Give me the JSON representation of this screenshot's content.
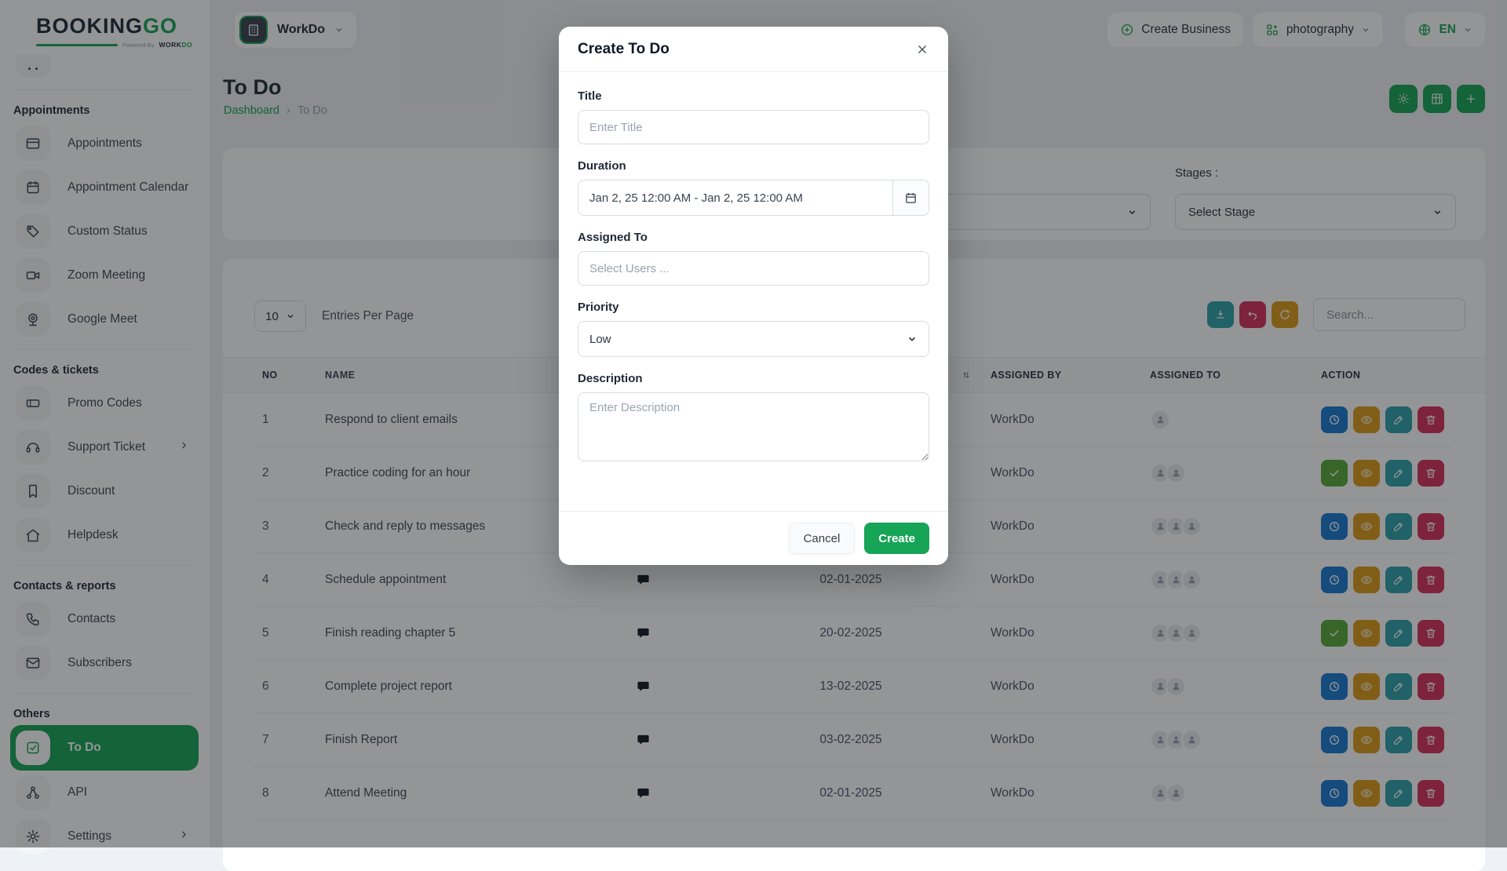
{
  "logo": {
    "brand_primary": "BOOKING",
    "brand_accent": "GO",
    "powered_prefix": "Powered By",
    "powered_brand_primary": "WORK",
    "powered_brand_accent": "DO"
  },
  "header": {
    "workspace_label": "WorkDo",
    "create_business_label": "Create Business",
    "business_label": "photography",
    "language_label": "EN"
  },
  "sidebar": {
    "sections": [
      {
        "title": "Appointments",
        "items": [
          {
            "icon": "card-icon",
            "label": "Appointments"
          },
          {
            "icon": "calendar-icon",
            "label": "Appointment Calendar"
          },
          {
            "icon": "tag-icon",
            "label": "Custom Status"
          },
          {
            "icon": "video-icon",
            "label": "Zoom Meeting"
          },
          {
            "icon": "webcam-icon",
            "label": "Google Meet"
          }
        ]
      },
      {
        "title": "Codes & tickets",
        "items": [
          {
            "icon": "ticket-icon",
            "label": "Promo Codes"
          },
          {
            "icon": "headset-icon",
            "label": "Support Ticket",
            "chevron": true
          },
          {
            "icon": "bookmark-icon",
            "label": "Discount"
          },
          {
            "icon": "home-icon",
            "label": "Helpdesk"
          }
        ]
      },
      {
        "title": "Contacts & reports",
        "items": [
          {
            "icon": "phone-icon",
            "label": "Contacts"
          },
          {
            "icon": "mail-icon",
            "label": "Subscribers"
          }
        ]
      },
      {
        "title": "Others",
        "items": [
          {
            "icon": "check-square-icon",
            "label": "To Do",
            "active": true
          },
          {
            "icon": "share-nodes-icon",
            "label": "API"
          },
          {
            "icon": "gear-icon",
            "label": "Settings",
            "chevron": true
          }
        ]
      }
    ]
  },
  "page": {
    "title": "To Do",
    "breadcrumb_home": "Dashboard",
    "breadcrumb_current": "To Do"
  },
  "filters": {
    "stages_label": "Stages :",
    "stage_value": "Select Stage"
  },
  "toolbar": {
    "entries_value": "10",
    "entries_label": "Entries Per Page",
    "search_placeholder": "Search..."
  },
  "table": {
    "headers": [
      {
        "label": "NO"
      },
      {
        "label": "NAME"
      },
      {
        "label": ""
      },
      {
        "label": "",
        "sort": true
      },
      {
        "label": "ASSIGNED BY"
      },
      {
        "label": "ASSIGNED TO"
      },
      {
        "label": "ACTION"
      }
    ],
    "rows": [
      {
        "no": "1",
        "name": "Respond to client emails",
        "date": "",
        "assigned_by": "WorkDo",
        "assignees": 1,
        "first_action": "clock"
      },
      {
        "no": "2",
        "name": "Practice coding for an hour",
        "date": "",
        "assigned_by": "WorkDo",
        "assignees": 2,
        "first_action": "check"
      },
      {
        "no": "3",
        "name": "Check and reply to messages",
        "date": "",
        "assigned_by": "WorkDo",
        "assignees": 3,
        "first_action": "clock"
      },
      {
        "no": "4",
        "name": "Schedule appointment",
        "date": "02-01-2025",
        "assigned_by": "WorkDo",
        "assignees": 3,
        "first_action": "clock"
      },
      {
        "no": "5",
        "name": "Finish reading chapter 5",
        "date": "20-02-2025",
        "assigned_by": "WorkDo",
        "assignees": 3,
        "first_action": "check"
      },
      {
        "no": "6",
        "name": "Complete project report",
        "date": "13-02-2025",
        "assigned_by": "WorkDo",
        "assignees": 2,
        "first_action": "clock"
      },
      {
        "no": "7",
        "name": "Finish Report",
        "date": "03-02-2025",
        "assigned_by": "WorkDo",
        "assignees": 3,
        "first_action": "clock"
      },
      {
        "no": "8",
        "name": "Attend Meeting",
        "date": "02-01-2025",
        "assigned_by": "WorkDo",
        "assignees": 2,
        "first_action": "clock"
      }
    ]
  },
  "modal": {
    "title": "Create To Do",
    "title_label": "Title",
    "title_placeholder": "Enter Title",
    "duration_label": "Duration",
    "duration_value": "Jan 2, 25 12:00 AM - Jan 2, 25 12:00 AM",
    "assigned_label": "Assigned To",
    "assigned_placeholder": "Select Users ...",
    "priority_label": "Priority",
    "priority_value": "Low",
    "description_label": "Description",
    "description_placeholder": "Enter Description",
    "cancel_label": "Cancel",
    "create_label": "Create"
  },
  "colors": {
    "theme_green": "#16a457",
    "action_blue": "#1979d2",
    "action_green": "#58a838",
    "action_amber": "#dd9b1b",
    "action_teal": "#2fa0ac",
    "action_crimson": "#d6305f"
  }
}
